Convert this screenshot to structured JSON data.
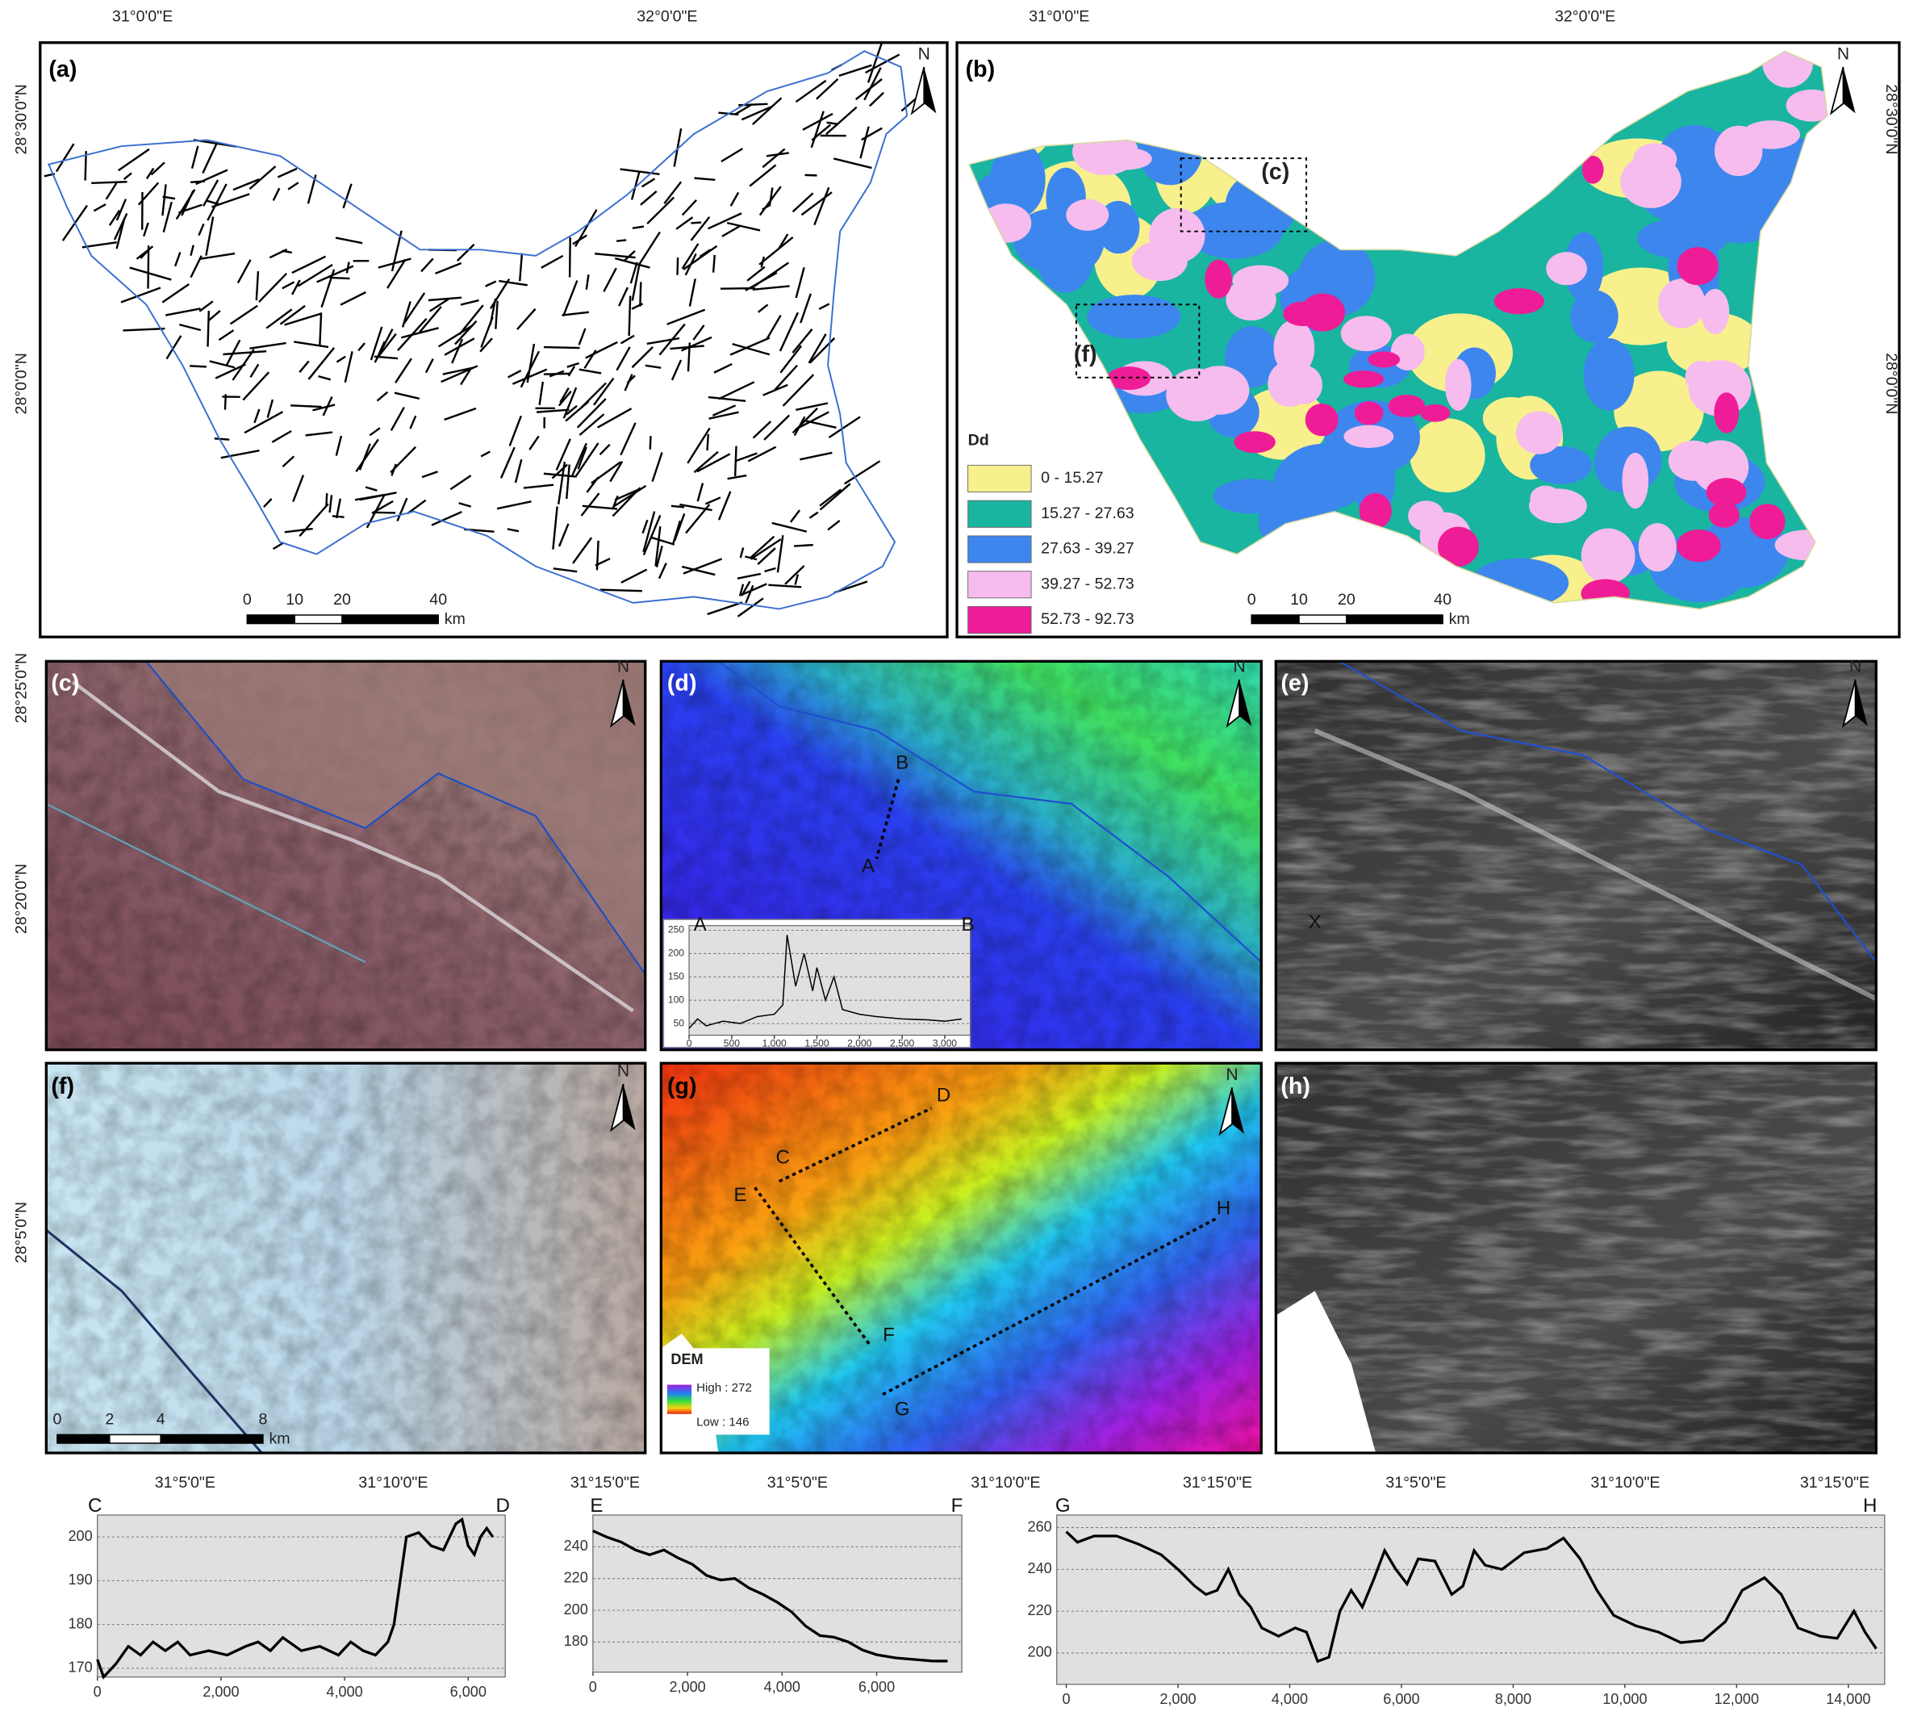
{
  "coord_labels": {
    "lon": [
      "31°0'0\"E",
      "32°0'0\"E"
    ],
    "lat": [
      "28°30'0\"N",
      "28°0'0\"N"
    ],
    "lat_detail": [
      "28°25'0\"N",
      "28°20'0\"N",
      "28°5'0\"N"
    ],
    "lon_detail": [
      "31°5'0\"E",
      "31°10'0\"E",
      "31°15'0\"E"
    ]
  },
  "panel_labels": [
    "(a)",
    "(b)",
    "(c)",
    "(d)",
    "(e)",
    "(f)",
    "(g)",
    "(h)"
  ],
  "north": "N",
  "scale_bar": {
    "ticks": [
      "0",
      "10",
      "20",
      "40"
    ],
    "unit": "km"
  },
  "scale_bar_f": {
    "ticks": [
      "0",
      "2",
      "4",
      "8"
    ],
    "unit": "km"
  },
  "legend": {
    "title": "Dd",
    "items": [
      {
        "label": "0 - 15.27",
        "color": "#f7f08c"
      },
      {
        "label": "15.27 - 27.63",
        "color": "#19b5a0"
      },
      {
        "label": "27.63 - 39.27",
        "color": "#3d86ee"
      },
      {
        "label": "39.27 - 52.73",
        "color": "#f6bcee"
      },
      {
        "label": "52.73 - 92.73",
        "color": "#ef1c97"
      }
    ]
  },
  "inset_boxes": [
    "(c)",
    "(f)"
  ],
  "points": [
    "A",
    "B",
    "C",
    "D",
    "E",
    "F",
    "G",
    "H",
    "X"
  ],
  "dem_legend": {
    "title": "DEM",
    "high": "High : 272",
    "low": "Low : 146"
  },
  "chart_data": [
    {
      "type": "line",
      "annotations": [
        "A",
        "B"
      ],
      "color": "#000000",
      "grid": true,
      "x": [
        0,
        100,
        200,
        400,
        600,
        800,
        1000,
        1100,
        1150,
        1250,
        1350,
        1450,
        1500,
        1600,
        1700,
        1800,
        2000,
        2200,
        2500,
        2800,
        3000,
        3200
      ],
      "values": [
        40,
        60,
        45,
        55,
        50,
        65,
        70,
        90,
        240,
        130,
        200,
        120,
        170,
        100,
        150,
        80,
        70,
        65,
        60,
        58,
        55,
        60
      ],
      "xlim": [
        0,
        3300
      ],
      "ylim": [
        25,
        260
      ],
      "xticks": [
        0,
        500,
        {
          "value": 1000,
          "label": "1,000"
        },
        {
          "value": 1500,
          "label": "1,500"
        },
        {
          "value": 2000,
          "label": "2,000"
        },
        {
          "value": 2500,
          "label": "2,500"
        },
        {
          "value": 3000,
          "label": "3,000"
        }
      ],
      "yticks": [
        50,
        100,
        150,
        200,
        250
      ]
    },
    {
      "type": "line",
      "annotations": [
        "C",
        "D"
      ],
      "color": "#000000",
      "grid": true,
      "x": [
        0,
        100,
        300,
        500,
        700,
        900,
        1100,
        1300,
        1500,
        1800,
        2100,
        2400,
        2600,
        2800,
        3000,
        3300,
        3600,
        3900,
        4100,
        4300,
        4500,
        4700,
        4800,
        4900,
        5000,
        5200,
        5400,
        5600,
        5800,
        5900,
        6000,
        6100,
        6200,
        6300,
        6400
      ],
      "values": [
        172,
        168,
        171,
        175,
        173,
        176,
        174,
        176,
        173,
        174,
        173,
        175,
        176,
        174,
        177,
        174,
        175,
        173,
        176,
        174,
        173,
        176,
        180,
        190,
        200,
        201,
        198,
        197,
        203,
        204,
        198,
        196,
        200,
        202,
        200
      ],
      "xlim": [
        0,
        6600
      ],
      "ylim": [
        168,
        205
      ],
      "xticks": [
        0,
        {
          "value": 2000,
          "label": "2,000"
        },
        {
          "value": 4000,
          "label": "4,000"
        },
        {
          "value": 6000,
          "label": "6,000"
        }
      ],
      "yticks": [
        170,
        180,
        190,
        200
      ]
    },
    {
      "type": "line",
      "annotations": [
        "E",
        "F"
      ],
      "color": "#000000",
      "grid": true,
      "x": [
        0,
        300,
        600,
        900,
        1200,
        1500,
        1800,
        2100,
        2400,
        2700,
        3000,
        3300,
        3600,
        3900,
        4200,
        4500,
        4800,
        5100,
        5400,
        5700,
        6000,
        6400,
        6800,
        7200,
        7500
      ],
      "values": [
        250,
        246,
        243,
        238,
        235,
        238,
        233,
        229,
        222,
        219,
        220,
        214,
        210,
        205,
        199,
        190,
        184,
        183,
        180,
        175,
        172,
        170,
        169,
        168,
        168
      ],
      "xlim": [
        0,
        7800
      ],
      "ylim": [
        161,
        260
      ],
      "xticks": [
        0,
        {
          "value": 2000,
          "label": "2,000"
        },
        {
          "value": 4000,
          "label": "4,000"
        },
        {
          "value": 6000,
          "label": "6,000"
        }
      ],
      "yticks": [
        180,
        200,
        220,
        240
      ]
    },
    {
      "type": "line",
      "annotations": [
        "G",
        "H"
      ],
      "color": "#000000",
      "grid": true,
      "x": [
        0,
        200,
        500,
        900,
        1300,
        1700,
        2000,
        2300,
        2500,
        2700,
        2900,
        3100,
        3300,
        3500,
        3800,
        4100,
        4300,
        4500,
        4700,
        4900,
        5100,
        5300,
        5500,
        5700,
        5900,
        6100,
        6300,
        6600,
        6900,
        7100,
        7300,
        7500,
        7800,
        8200,
        8600,
        8900,
        9200,
        9500,
        9800,
        10200,
        10600,
        11000,
        11400,
        11800,
        12100,
        12500,
        12800,
        13100,
        13500,
        13800,
        14100,
        14300,
        14500
      ],
      "values": [
        258,
        253,
        256,
        256,
        252,
        247,
        240,
        232,
        228,
        230,
        240,
        228,
        222,
        212,
        208,
        212,
        210,
        196,
        198,
        220,
        230,
        222,
        235,
        249,
        240,
        233,
        245,
        244,
        228,
        232,
        249,
        242,
        240,
        248,
        250,
        255,
        245,
        230,
        218,
        213,
        210,
        205,
        206,
        215,
        230,
        236,
        228,
        212,
        208,
        207,
        220,
        210,
        202
      ],
      "xlim": [
        -170,
        14650
      ],
      "ylim": [
        185,
        266
      ],
      "xticks": [
        0,
        {
          "value": 2000,
          "label": "2,000"
        },
        {
          "value": 4000,
          "label": "4,000"
        },
        {
          "value": 6000,
          "label": "6,000"
        },
        {
          "value": 8000,
          "label": "8,000"
        },
        {
          "value": 10000,
          "label": "10,000"
        },
        {
          "value": 12000,
          "label": "12,000"
        },
        {
          "value": 14000,
          "label": "14,000"
        }
      ],
      "yticks": [
        200,
        220,
        240,
        260
      ]
    }
  ]
}
